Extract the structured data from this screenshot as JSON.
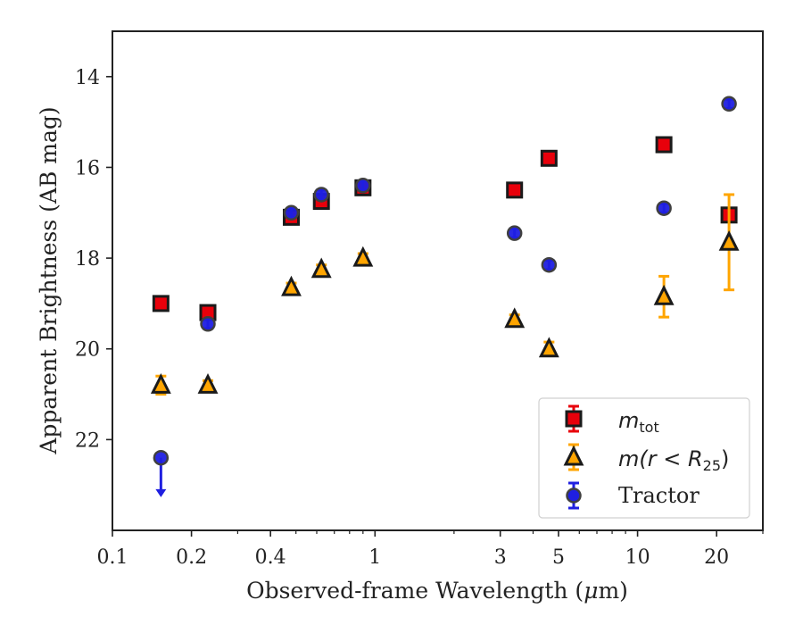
{
  "chart_data": {
    "type": "scatter",
    "xlabel_parts": [
      "Observed-frame Wavelength (",
      "μ",
      "m)"
    ],
    "ylabel": "Apparent Brightness (AB mag)",
    "xscale": "log",
    "xlim": [
      0.1,
      30
    ],
    "ylim": [
      24,
      13
    ],
    "y_inverted": true,
    "grid": false,
    "legend_position": "lower-right",
    "x_ticks": [
      {
        "value": 0.1,
        "label": "0.1"
      },
      {
        "value": 0.2,
        "label": "0.2"
      },
      {
        "value": 0.4,
        "label": "0.4"
      },
      {
        "value": 1,
        "label": "1"
      },
      {
        "value": 3,
        "label": "3"
      },
      {
        "value": 5,
        "label": "5"
      },
      {
        "value": 10,
        "label": "10"
      },
      {
        "value": 20,
        "label": "20"
      }
    ],
    "y_ticks": [
      {
        "value": 14,
        "label": "14"
      },
      {
        "value": 16,
        "label": "16"
      },
      {
        "value": 18,
        "label": "18"
      },
      {
        "value": 20,
        "label": "20"
      },
      {
        "value": 22,
        "label": "22"
      }
    ],
    "series": [
      {
        "name": "m_tot",
        "legend_main": "m",
        "legend_sub": "tot",
        "marker": "square",
        "color": "#e8000b",
        "error_color": "#e8000b",
        "points": [
          {
            "x": 0.153,
            "y": 19.0,
            "err": 0.1
          },
          {
            "x": 0.231,
            "y": 19.2,
            "err": 0.1
          },
          {
            "x": 0.48,
            "y": 17.1,
            "err": 0.1
          },
          {
            "x": 0.625,
            "y": 16.75,
            "err": 0.1
          },
          {
            "x": 0.9,
            "y": 16.45,
            "err": 0.1
          },
          {
            "x": 3.4,
            "y": 16.5,
            "err": 0.1
          },
          {
            "x": 4.6,
            "y": 15.8,
            "err": 0.1
          },
          {
            "x": 12.6,
            "y": 15.5,
            "err": 0.1
          },
          {
            "x": 22.3,
            "y": 17.05,
            "err": 0.1
          }
        ]
      },
      {
        "name": "m(r < R_25)",
        "legend_text": "m(r < R",
        "legend_sub": "25",
        "legend_close": ")",
        "marker": "triangle",
        "color": "#ffa500",
        "error_color": "#ffa500",
        "points": [
          {
            "x": 0.153,
            "y": 20.8,
            "err": 0.2
          },
          {
            "x": 0.231,
            "y": 20.8,
            "err": 0.1
          },
          {
            "x": 0.48,
            "y": 18.65,
            "err": 0.1
          },
          {
            "x": 0.625,
            "y": 18.25,
            "err": 0.1
          },
          {
            "x": 0.9,
            "y": 18.0,
            "err": 0.1
          },
          {
            "x": 3.4,
            "y": 19.35,
            "err": 0.1
          },
          {
            "x": 4.6,
            "y": 20.0,
            "err": 0.15
          },
          {
            "x": 12.6,
            "y": 18.85,
            "err": 0.45
          },
          {
            "x": 22.3,
            "y": 17.65,
            "err": 1.05
          }
        ]
      },
      {
        "name": "Tractor",
        "legend_text": "Tractor",
        "marker": "circle",
        "color": "#1f1fe0",
        "error_color": "#1f1fe0",
        "points": [
          {
            "x": 0.153,
            "y": 22.4,
            "upper_limit": true
          },
          {
            "x": 0.231,
            "y": 19.45,
            "err": 0.1
          },
          {
            "x": 0.48,
            "y": 17.0,
            "err": 0.1
          },
          {
            "x": 0.625,
            "y": 16.6,
            "err": 0.1
          },
          {
            "x": 0.9,
            "y": 16.4,
            "err": 0.1
          },
          {
            "x": 3.4,
            "y": 17.45,
            "err": 0.1
          },
          {
            "x": 4.6,
            "y": 18.15,
            "err": 0.1
          },
          {
            "x": 12.6,
            "y": 16.9,
            "err": 0.1
          },
          {
            "x": 22.3,
            "y": 14.6,
            "err": 0.1
          }
        ]
      }
    ]
  }
}
